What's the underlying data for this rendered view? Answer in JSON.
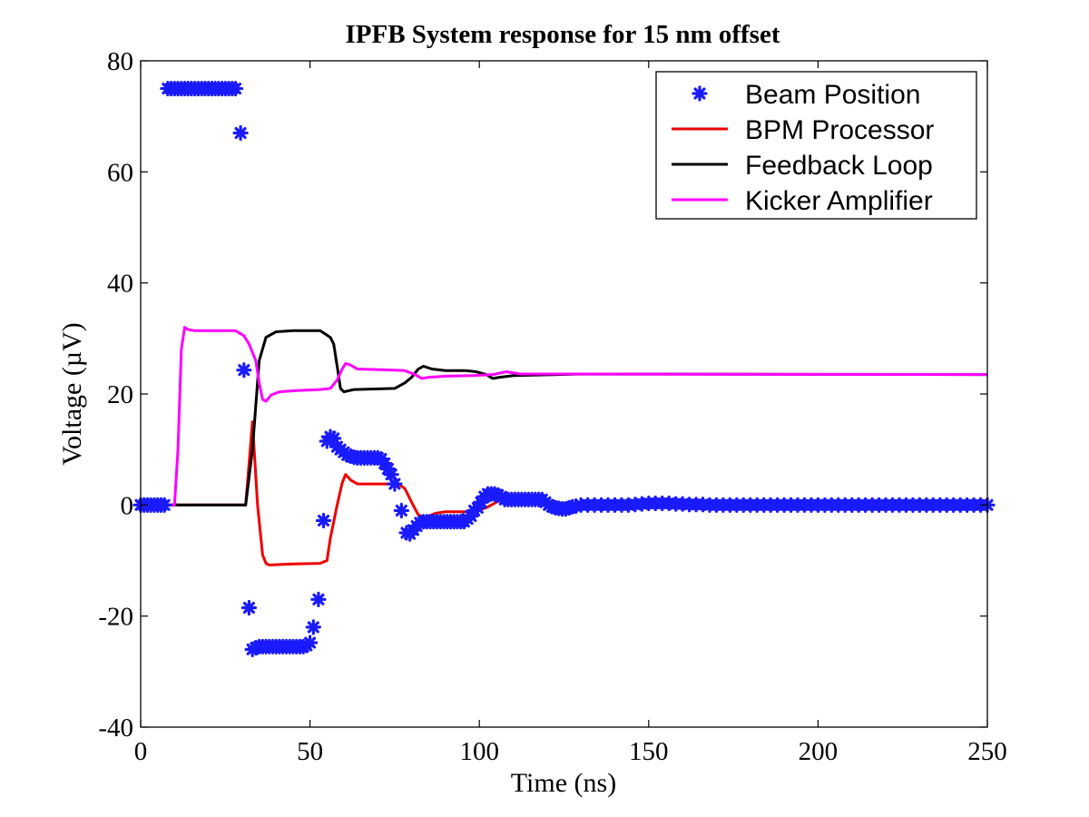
{
  "chart_data": {
    "type": "line",
    "title": "IPFB System response for 15 nm offset",
    "xlabel": "Time (ns)",
    "ylabel": "Voltage (µV)",
    "xlim": [
      0,
      250
    ],
    "ylim": [
      -40,
      80
    ],
    "xticks": [
      0,
      50,
      100,
      150,
      200,
      250
    ],
    "yticks": [
      -40,
      -20,
      0,
      20,
      40,
      60,
      80
    ],
    "grid": false,
    "legend_position": "top-right",
    "series": [
      {
        "name": "Beam Position",
        "style": "scatter",
        "marker": "asterisk",
        "color": "#1a1aff",
        "points": [
          [
            0,
            0
          ],
          [
            1,
            0
          ],
          [
            2,
            0
          ],
          [
            3,
            0
          ],
          [
            4,
            0
          ],
          [
            5,
            0
          ],
          [
            6,
            0
          ],
          [
            7,
            0
          ],
          [
            8,
            75
          ],
          [
            9,
            75
          ],
          [
            10,
            75
          ],
          [
            11,
            75
          ],
          [
            12,
            75
          ],
          [
            13,
            75
          ],
          [
            14,
            75
          ],
          [
            15,
            75
          ],
          [
            16,
            75
          ],
          [
            17,
            75
          ],
          [
            18,
            75
          ],
          [
            19,
            75
          ],
          [
            20,
            75
          ],
          [
            21,
            75
          ],
          [
            22,
            75
          ],
          [
            23,
            75
          ],
          [
            24,
            75
          ],
          [
            25,
            75
          ],
          [
            26,
            75
          ],
          [
            27,
            75
          ],
          [
            28,
            75
          ],
          [
            29.5,
            67
          ],
          [
            30.5,
            24.3
          ],
          [
            32,
            -18.5
          ],
          [
            33,
            -26
          ],
          [
            34,
            -25.7
          ],
          [
            35,
            -25.5
          ],
          [
            36,
            -25.5
          ],
          [
            37,
            -25.5
          ],
          [
            38,
            -25.5
          ],
          [
            39,
            -25.5
          ],
          [
            40,
            -25.5
          ],
          [
            41,
            -25.5
          ],
          [
            42,
            -25.5
          ],
          [
            43,
            -25.5
          ],
          [
            44,
            -25.5
          ],
          [
            45,
            -25.5
          ],
          [
            46,
            -25.5
          ],
          [
            47,
            -25.5
          ],
          [
            48,
            -25.5
          ],
          [
            49,
            -25.3
          ],
          [
            50,
            -24.8
          ],
          [
            51,
            -22
          ],
          [
            52.5,
            -17
          ],
          [
            54,
            -2.8
          ],
          [
            55,
            11.5
          ],
          [
            56,
            12.3
          ],
          [
            57,
            12
          ],
          [
            58,
            10.5
          ],
          [
            59,
            10
          ],
          [
            60,
            9.5
          ],
          [
            61,
            9
          ],
          [
            62,
            8.8
          ],
          [
            63,
            8.6
          ],
          [
            64,
            8.5
          ],
          [
            65,
            8.5
          ],
          [
            66,
            8.5
          ],
          [
            67,
            8.5
          ],
          [
            68,
            8.5
          ],
          [
            69,
            8.5
          ],
          [
            70,
            8.5
          ],
          [
            71,
            8.3
          ],
          [
            72,
            7.5
          ],
          [
            73,
            6.5
          ],
          [
            74,
            5.5
          ],
          [
            75,
            3.8
          ],
          [
            77,
            -1
          ],
          [
            78.5,
            -5
          ],
          [
            79.5,
            -5.2
          ],
          [
            80.5,
            -4.5
          ],
          [
            81.5,
            -3.8
          ],
          [
            82.5,
            -3.2
          ],
          [
            83.5,
            -3
          ],
          [
            84.5,
            -3
          ],
          [
            85.5,
            -3
          ],
          [
            86.5,
            -3
          ],
          [
            87.5,
            -3
          ],
          [
            88.5,
            -3
          ],
          [
            89.5,
            -3
          ],
          [
            90.5,
            -3
          ],
          [
            91.5,
            -3
          ],
          [
            92.5,
            -3
          ],
          [
            93.5,
            -3
          ],
          [
            94.5,
            -3
          ],
          [
            95.5,
            -3
          ],
          [
            96.5,
            -2.5
          ],
          [
            97.5,
            -2
          ],
          [
            98.5,
            -1
          ],
          [
            99.5,
            -0.5
          ],
          [
            100.5,
            0.5
          ],
          [
            101.5,
            1.5
          ],
          [
            102.5,
            2
          ],
          [
            103.5,
            2
          ],
          [
            104.5,
            2
          ],
          [
            105.5,
            1.8
          ],
          [
            106.5,
            1.5
          ],
          [
            107.5,
            1
          ],
          [
            108.5,
            1
          ],
          [
            109.5,
            1
          ],
          [
            110.5,
            1
          ],
          [
            111.5,
            1
          ],
          [
            112.5,
            1
          ],
          [
            113.5,
            1
          ],
          [
            114.5,
            1
          ],
          [
            115.5,
            1
          ],
          [
            116.5,
            1
          ],
          [
            117.5,
            1
          ],
          [
            118.5,
            1
          ],
          [
            119.5,
            0.5
          ],
          [
            120.5,
            0
          ],
          [
            121.5,
            -0.3
          ],
          [
            122.5,
            -0.5
          ],
          [
            123.5,
            -0.6
          ],
          [
            124.5,
            -0.7
          ],
          [
            125.5,
            -0.7
          ],
          [
            126.5,
            -0.5
          ],
          [
            127.5,
            -0.3
          ],
          [
            128.5,
            -0.2
          ],
          [
            130,
            0
          ],
          [
            132,
            0
          ],
          [
            134,
            0
          ],
          [
            136,
            0
          ],
          [
            138,
            0
          ],
          [
            140,
            0
          ],
          [
            142,
            0
          ],
          [
            144,
            0
          ],
          [
            146,
            0.1
          ],
          [
            148,
            0.2
          ],
          [
            150,
            0.3
          ],
          [
            152,
            0.3
          ],
          [
            154,
            0.3
          ],
          [
            156,
            0.3
          ],
          [
            158,
            0.2
          ],
          [
            160,
            0.2
          ],
          [
            162,
            0.1
          ],
          [
            164,
            0.1
          ],
          [
            166,
            0.1
          ],
          [
            168,
            0
          ],
          [
            170,
            0
          ],
          [
            172,
            0
          ],
          [
            174,
            0
          ],
          [
            176,
            0
          ],
          [
            178,
            0
          ],
          [
            180,
            0
          ],
          [
            182,
            0
          ],
          [
            184,
            0
          ],
          [
            186,
            0
          ],
          [
            188,
            0
          ],
          [
            190,
            0
          ],
          [
            192,
            0
          ],
          [
            194,
            0
          ],
          [
            196,
            0
          ],
          [
            198,
            0
          ],
          [
            200,
            0
          ],
          [
            202,
            0
          ],
          [
            204,
            0
          ],
          [
            206,
            0
          ],
          [
            208,
            0
          ],
          [
            210,
            0
          ],
          [
            212,
            0
          ],
          [
            214,
            0
          ],
          [
            216,
            0
          ],
          [
            218,
            0
          ],
          [
            220,
            0
          ],
          [
            222,
            0
          ],
          [
            224,
            0
          ],
          [
            226,
            0
          ],
          [
            228,
            0
          ],
          [
            230,
            0
          ],
          [
            232,
            0
          ],
          [
            234,
            0
          ],
          [
            236,
            0
          ],
          [
            238,
            0
          ],
          [
            240,
            0
          ],
          [
            242,
            0
          ],
          [
            244,
            0
          ],
          [
            246,
            0
          ],
          [
            248,
            0
          ],
          [
            250,
            0
          ]
        ]
      },
      {
        "name": "BPM Processor",
        "style": "line",
        "color": "#ee0000",
        "points": [
          [
            0,
            0
          ],
          [
            31,
            0
          ],
          [
            33,
            15
          ],
          [
            34.5,
            0
          ],
          [
            36,
            -9
          ],
          [
            37,
            -10.5
          ],
          [
            38,
            -10.8
          ],
          [
            45,
            -10.6
          ],
          [
            53,
            -10.5
          ],
          [
            55,
            -10
          ],
          [
            56,
            -6
          ],
          [
            58,
            0
          ],
          [
            59.5,
            4
          ],
          [
            60.5,
            5.5
          ],
          [
            62,
            4.5
          ],
          [
            64,
            3.8
          ],
          [
            76,
            3.8
          ],
          [
            78,
            3
          ],
          [
            80,
            0.5
          ],
          [
            82,
            -1.8
          ],
          [
            84,
            -2.3
          ],
          [
            87,
            -1.5
          ],
          [
            90,
            -1.2
          ],
          [
            98,
            -1.2
          ],
          [
            102,
            -0.5
          ],
          [
            105,
            0.5
          ],
          [
            107,
            1.2
          ],
          [
            109,
            1
          ],
          [
            118,
            0.8
          ],
          [
            121,
            0.3
          ],
          [
            125,
            0
          ],
          [
            250,
            0
          ]
        ]
      },
      {
        "name": "Feedback Loop",
        "style": "line",
        "color": "#000000",
        "points": [
          [
            0,
            0
          ],
          [
            31,
            0
          ],
          [
            33,
            10
          ],
          [
            35,
            26
          ],
          [
            37,
            30.2
          ],
          [
            40,
            31.2
          ],
          [
            45,
            31.4
          ],
          [
            53,
            31.4
          ],
          [
            56,
            30.2
          ],
          [
            57,
            29
          ],
          [
            58,
            25
          ],
          [
            59,
            21
          ],
          [
            60,
            20.4
          ],
          [
            63,
            20.8
          ],
          [
            75,
            21
          ],
          [
            78,
            22
          ],
          [
            80,
            23
          ],
          [
            82,
            24.5
          ],
          [
            83.5,
            25
          ],
          [
            86,
            24.5
          ],
          [
            90,
            24.2
          ],
          [
            96,
            24.2
          ],
          [
            99,
            24
          ],
          [
            102,
            23.5
          ],
          [
            104,
            22.8
          ],
          [
            106,
            23
          ],
          [
            110,
            23.3
          ],
          [
            130,
            23.6
          ],
          [
            250,
            23.5
          ]
        ]
      },
      {
        "name": "Kicker Amplifier",
        "style": "line",
        "color": "#ff00ff",
        "points": [
          [
            0,
            0
          ],
          [
            10,
            0
          ],
          [
            11,
            10
          ],
          [
            12,
            28
          ],
          [
            13,
            32
          ],
          [
            14,
            31.6
          ],
          [
            16,
            31.4
          ],
          [
            28,
            31.4
          ],
          [
            30.5,
            30.5
          ],
          [
            32,
            29
          ],
          [
            34,
            26
          ],
          [
            35,
            22
          ],
          [
            36,
            19
          ],
          [
            37,
            18.7
          ],
          [
            38.5,
            19.8
          ],
          [
            41,
            20.4
          ],
          [
            46,
            20.6
          ],
          [
            53,
            20.8
          ],
          [
            56,
            21
          ],
          [
            58,
            22.5
          ],
          [
            59.5,
            24.5
          ],
          [
            60.5,
            25.5
          ],
          [
            62,
            25.2
          ],
          [
            64,
            24.5
          ],
          [
            75,
            24.3
          ],
          [
            78,
            24.2
          ],
          [
            81,
            23.5
          ],
          [
            83,
            22.8
          ],
          [
            85,
            23
          ],
          [
            90,
            23.2
          ],
          [
            98,
            23.3
          ],
          [
            104,
            23.5
          ],
          [
            108,
            24
          ],
          [
            112,
            23.6
          ],
          [
            120,
            23.6
          ],
          [
            250,
            23.5
          ]
        ]
      }
    ]
  }
}
